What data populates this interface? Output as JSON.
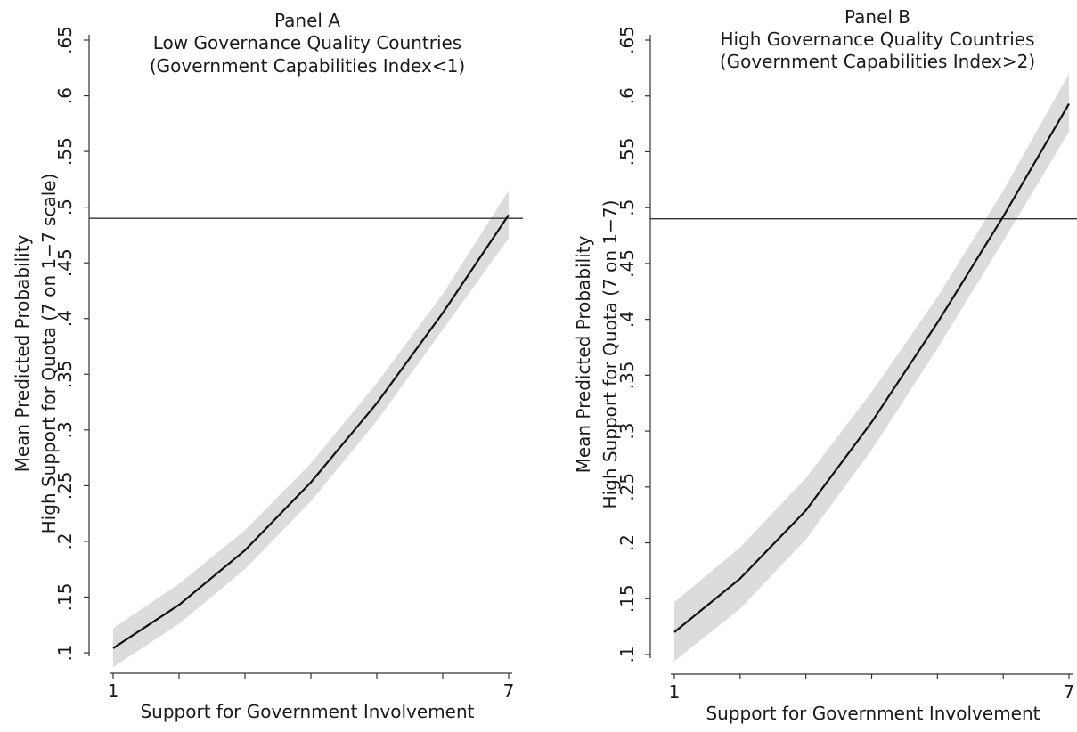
{
  "chart_data": [
    {
      "type": "line",
      "title": "Panel A",
      "subtitle": [
        "Low Governance Quality Countries",
        "(Government Capabilities Index<1)"
      ],
      "xlabel": "Support for Government Involvement",
      "ylabel": [
        "Mean Predicted Probability",
        "High Support for Quota (7 on 1−7 scale)"
      ],
      "xlim": [
        1,
        7
      ],
      "ylim": [
        0.1,
        0.65
      ],
      "x_ticks": [
        1,
        7
      ],
      "x_tick_labels": [
        "1",
        "7"
      ],
      "y_ticks": [
        0.1,
        0.15,
        0.2,
        0.25,
        0.3,
        0.35,
        0.4,
        0.45,
        0.5,
        0.55,
        0.6,
        0.65
      ],
      "y_tick_labels": [
        ".1",
        ".15",
        ".2",
        ".25",
        ".3",
        ".35",
        ".4",
        ".45",
        ".5",
        ".55",
        ".6",
        ".65"
      ],
      "reference_line": 0.49,
      "grid": false,
      "series": [
        {
          "x": [
            1,
            2,
            3,
            4,
            5,
            6,
            7
          ],
          "y": [
            0.104,
            0.143,
            0.192,
            0.253,
            0.324,
            0.405,
            0.493
          ],
          "ci_lower": [
            0.087,
            0.126,
            0.175,
            0.236,
            0.308,
            0.39,
            0.472
          ],
          "ci_upper": [
            0.122,
            0.162,
            0.21,
            0.27,
            0.342,
            0.422,
            0.515
          ]
        }
      ]
    },
    {
      "type": "line",
      "title": "Panel B",
      "subtitle": [
        "High Governance Quality Countries",
        "(Government Capabilities Index>2)"
      ],
      "xlabel": "Support for Government Involvement",
      "ylabel": [
        "Mean Predicted Probability",
        "High Support for Quota (7 on 1−7)"
      ],
      "xlim": [
        1,
        7
      ],
      "ylim": [
        0.1,
        0.65
      ],
      "x_ticks": [
        1,
        7
      ],
      "x_tick_labels": [
        "1",
        "7"
      ],
      "y_ticks": [
        0.1,
        0.15,
        0.2,
        0.25,
        0.3,
        0.35,
        0.4,
        0.45,
        0.5,
        0.55,
        0.6,
        0.65
      ],
      "y_tick_labels": [
        ".1",
        ".15",
        ".2",
        ".25",
        ".3",
        ".35",
        ".4",
        ".45",
        ".5",
        ".55",
        ".6",
        ".65"
      ],
      "reference_line": 0.49,
      "grid": false,
      "series": [
        {
          "x": [
            1,
            2,
            3,
            4,
            5,
            6,
            7
          ],
          "y": [
            0.12,
            0.168,
            0.229,
            0.308,
            0.397,
            0.492,
            0.593
          ],
          "ci_lower": [
            0.094,
            0.141,
            0.203,
            0.283,
            0.374,
            0.47,
            0.568
          ],
          "ci_upper": [
            0.147,
            0.196,
            0.258,
            0.335,
            0.42,
            0.515,
            0.62
          ]
        }
      ]
    }
  ],
  "colors": {
    "line": "#111111",
    "band": "#dcdcdc",
    "axis": "#333333",
    "reference": "#333333"
  }
}
